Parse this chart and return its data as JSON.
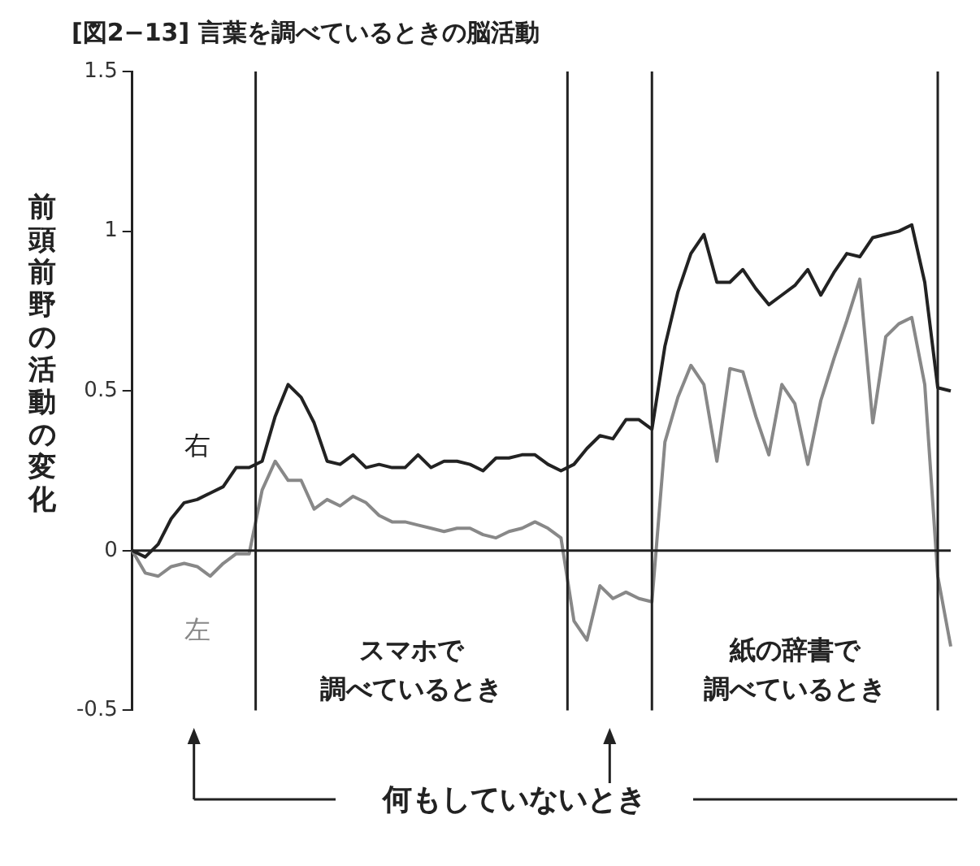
{
  "chart_data": {
    "type": "line",
    "title": "[図2−13] 言葉を調べているときの脳活動",
    "ylabel": "前頭前野の活動の変化",
    "categories": [
      null,
      null,
      null,
      null,
      null,
      null,
      null,
      null,
      null,
      null,
      null,
      null,
      null,
      null,
      null,
      null,
      null,
      null,
      null,
      null,
      null,
      null,
      null,
      null,
      null,
      null,
      null,
      null,
      null,
      null,
      null,
      null,
      null,
      null,
      null,
      null,
      null,
      null,
      null,
      null,
      null,
      null,
      null,
      null,
      null,
      null,
      null,
      null,
      null,
      null,
      null,
      null,
      null,
      null,
      null,
      null,
      null,
      null,
      null,
      null,
      null,
      null,
      null,
      null
    ],
    "ylim": [
      -0.5,
      1.5
    ],
    "yticks": [
      -0.5,
      0,
      0.5,
      1,
      1.5
    ],
    "tick_labels": "y",
    "grid": false,
    "legend": false,
    "marker": "none",
    "line_style": "solid",
    "series": [
      {
        "name": "右",
        "color": "#222222",
        "values": [
          0,
          -0.02,
          0.02,
          0.1,
          0.15,
          0.16,
          0.18,
          0.2,
          0.26,
          0.26,
          0.28,
          0.42,
          0.52,
          0.48,
          0.4,
          0.28,
          0.27,
          0.3,
          0.26,
          0.27,
          0.26,
          0.26,
          0.3,
          0.26,
          0.28,
          0.28,
          0.27,
          0.25,
          0.29,
          0.29,
          0.3,
          0.3,
          0.27,
          0.25,
          0.27,
          0.32,
          0.36,
          0.35,
          0.41,
          0.41,
          0.38,
          0.64,
          0.81,
          0.93,
          0.99,
          0.84,
          0.84,
          0.88,
          0.82,
          0.77,
          0.8,
          0.83,
          0.88,
          0.8,
          0.87,
          0.93,
          0.92,
          0.98,
          0.99,
          1.0,
          1.02,
          0.84,
          0.51,
          0.5
        ]
      },
      {
        "name": "左",
        "color": "#888888",
        "values": [
          0,
          -0.07,
          -0.08,
          -0.05,
          -0.04,
          -0.05,
          -0.08,
          -0.04,
          -0.01,
          -0.01,
          0.19,
          0.28,
          0.22,
          0.22,
          0.13,
          0.16,
          0.14,
          0.17,
          0.15,
          0.11,
          0.09,
          0.09,
          0.08,
          0.07,
          0.06,
          0.07,
          0.07,
          0.05,
          0.04,
          0.06,
          0.07,
          0.09,
          0.07,
          0.04,
          -0.22,
          -0.28,
          -0.11,
          -0.15,
          -0.13,
          -0.15,
          -0.16,
          0.34,
          0.48,
          0.58,
          0.52,
          0.28,
          0.57,
          0.56,
          0.42,
          0.3,
          0.52,
          0.46,
          0.27,
          0.47,
          0.6,
          0.72,
          0.85,
          0.4,
          0.67,
          0.71,
          0.73,
          0.52,
          -0.08,
          -0.3
        ]
      }
    ],
    "ref_lines": [
      {
        "axis": "y",
        "value": 0,
        "color": "#222222"
      }
    ],
    "annotations": [
      "スマホで調べているとき",
      "紙の辞書で調べているとき",
      "何もしていないとき"
    ]
  }
}
